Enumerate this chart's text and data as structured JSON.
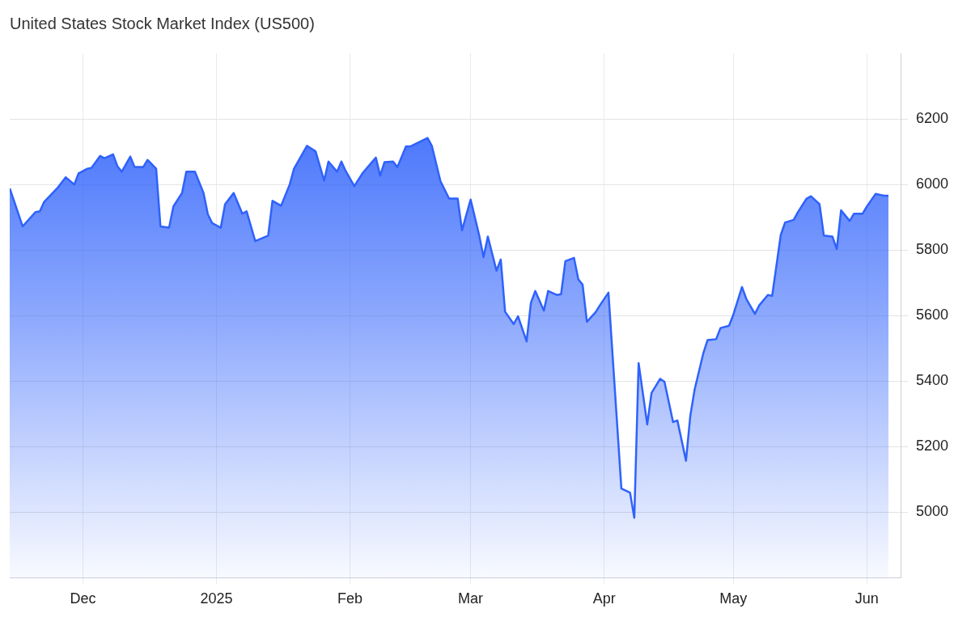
{
  "chart_data": {
    "type": "area",
    "title": "United States Stock Market Index (US500)",
    "x": [
      "2024-11-14",
      "2024-11-15",
      "2024-11-17",
      "2024-11-20",
      "2024-11-21",
      "2024-11-22",
      "2024-11-25",
      "2024-11-27",
      "2024-11-29",
      "2024-11-30",
      "2024-12-02",
      "2024-12-03",
      "2024-12-05",
      "2024-12-06",
      "2024-12-08",
      "2024-12-09",
      "2024-12-10",
      "2024-12-12",
      "2024-12-13",
      "2024-12-15",
      "2024-12-16",
      "2024-12-18",
      "2024-12-19",
      "2024-12-21",
      "2024-12-22",
      "2024-12-24",
      "2024-12-25",
      "2024-12-27",
      "2024-12-29",
      "2024-12-30",
      "2024-12-31",
      "2025-01-02",
      "2025-01-03",
      "2025-01-05",
      "2025-01-07",
      "2025-01-08",
      "2025-01-10",
      "2025-01-13",
      "2025-01-14",
      "2025-01-16",
      "2025-01-18",
      "2025-01-19",
      "2025-01-22",
      "2025-01-24",
      "2025-01-26",
      "2025-01-27",
      "2025-01-29",
      "2025-01-30",
      "2025-01-31",
      "2025-02-02",
      "2025-02-04",
      "2025-02-07",
      "2025-02-08",
      "2025-02-09",
      "2025-02-11",
      "2025-02-12",
      "2025-02-14",
      "2025-02-15",
      "2025-02-19",
      "2025-02-20",
      "2025-02-22",
      "2025-02-24",
      "2025-02-26",
      "2025-02-27",
      "2025-03-01",
      "2025-03-03",
      "2025-03-04",
      "2025-03-05",
      "2025-03-07",
      "2025-03-08",
      "2025-03-09",
      "2025-03-11",
      "2025-03-12",
      "2025-03-14",
      "2025-03-15",
      "2025-03-16",
      "2025-03-18",
      "2025-03-19",
      "2025-03-21",
      "2025-03-22",
      "2025-03-23",
      "2025-03-25",
      "2025-03-26",
      "2025-03-27",
      "2025-03-28",
      "2025-03-30",
      "2025-03-31",
      "2025-04-02",
      "2025-04-05",
      "2025-04-07",
      "2025-04-08",
      "2025-04-09",
      "2025-04-11",
      "2025-04-12",
      "2025-04-14",
      "2025-04-15",
      "2025-04-17",
      "2025-04-18",
      "2025-04-20",
      "2025-04-21",
      "2025-04-22",
      "2025-04-24",
      "2025-04-25",
      "2025-04-27",
      "2025-04-28",
      "2025-04-30",
      "2025-05-01",
      "2025-05-03",
      "2025-05-04",
      "2025-05-06",
      "2025-05-07",
      "2025-05-09",
      "2025-05-10",
      "2025-05-12",
      "2025-05-13",
      "2025-05-15",
      "2025-05-16",
      "2025-05-18",
      "2025-05-19",
      "2025-05-21",
      "2025-05-22",
      "2025-05-24",
      "2025-05-25",
      "2025-05-26",
      "2025-05-28",
      "2025-05-29",
      "2025-05-31",
      "2025-06-01",
      "2025-06-03",
      "2025-06-05",
      "2025-06-06"
    ],
    "series": [
      {
        "color": "#2f62fb",
        "values": [
          5988,
          5950,
          5872,
          5916,
          5918,
          5947,
          5988,
          6022,
          6000,
          6034,
          6048,
          6051,
          6087,
          6080,
          6092,
          6056,
          6039,
          6085,
          6053,
          6053,
          6075,
          6048,
          5872,
          5868,
          5933,
          5974,
          6039,
          6039,
          5974,
          5909,
          5882,
          5868,
          5940,
          5974,
          5911,
          5918,
          5827,
          5844,
          5950,
          5935,
          6000,
          6048,
          6118,
          6101,
          6012,
          6070,
          6039,
          6070,
          6041,
          5995,
          6036,
          6082,
          6027,
          6068,
          6070,
          6053,
          6116,
          6116,
          6142,
          6118,
          6010,
          5957,
          5957,
          5860,
          5954,
          5844,
          5778,
          5841,
          5737,
          5771,
          5612,
          5574,
          5598,
          5521,
          5639,
          5675,
          5615,
          5675,
          5663,
          5665,
          5766,
          5776,
          5711,
          5694,
          5581,
          5610,
          5631,
          5670,
          5072,
          5060,
          4983,
          5455,
          5268,
          5364,
          5407,
          5398,
          5275,
          5280,
          5157,
          5294,
          5374,
          5484,
          5525,
          5528,
          5562,
          5569,
          5603,
          5687,
          5651,
          5605,
          5631,
          5663,
          5660,
          5846,
          5884,
          5892,
          5916,
          5957,
          5964,
          5940,
          5844,
          5841,
          5803,
          5921,
          5889,
          5911,
          5911,
          5933,
          5971,
          5966,
          5966
        ]
      }
    ],
    "xlim": [
      "2024-11-14",
      "2025-06-09"
    ],
    "xticks": [
      {
        "value": "2024-12-01",
        "label": "Dec"
      },
      {
        "value": "2025-01-01",
        "label": "2025"
      },
      {
        "value": "2025-02-01",
        "label": "Feb"
      },
      {
        "value": "2025-03-01",
        "label": "Mar"
      },
      {
        "value": "2025-04-01",
        "label": "Apr"
      },
      {
        "value": "2025-05-01",
        "label": "May"
      },
      {
        "value": "2025-06-01",
        "label": "Jun"
      }
    ],
    "ylim": [
      4800,
      6400
    ],
    "yticks": [
      5000,
      5200,
      5400,
      5600,
      5800,
      6000,
      6200
    ],
    "grid": true,
    "legend": false
  }
}
